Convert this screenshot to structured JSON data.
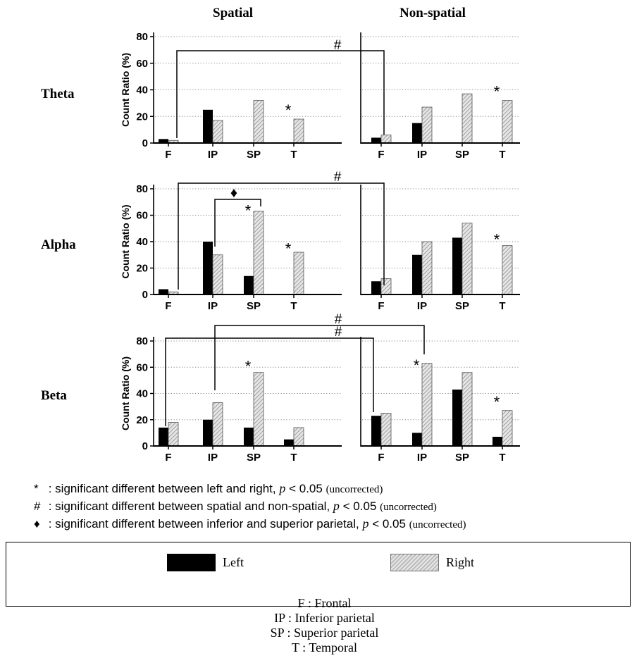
{
  "columns": {
    "spatial": "Spatial",
    "nonspatial": "Non-spatial"
  },
  "bands": [
    "Theta",
    "Alpha",
    "Beta"
  ],
  "significance_marks": {
    "lr": "*",
    "sns": "#",
    "ips": "♦"
  },
  "chart_data": [
    {
      "type": "bar",
      "band": "Theta",
      "condition": "Spatial",
      "categories": [
        "F",
        "IP",
        "SP",
        "T"
      ],
      "ylabel": "Count Ratio (%)",
      "ylim": [
        0,
        80
      ],
      "yticks": [
        0,
        20,
        40,
        60,
        80
      ],
      "grid": "dotted",
      "series": [
        {
          "name": "Left",
          "values": [
            3,
            25,
            0,
            0
          ]
        },
        {
          "name": "Right",
          "values": [
            2,
            17,
            32,
            18
          ]
        }
      ],
      "annotations": [
        {
          "mark": "*",
          "category": "T",
          "y": 27
        }
      ]
    },
    {
      "type": "bar",
      "band": "Theta",
      "condition": "Non-spatial",
      "categories": [
        "F",
        "IP",
        "SP",
        "T"
      ],
      "ylim": [
        0,
        80
      ],
      "yticks": [
        0,
        20,
        40,
        60,
        80
      ],
      "grid": "dotted",
      "series": [
        {
          "name": "Left",
          "values": [
            4,
            15,
            0,
            0
          ]
        },
        {
          "name": "Right",
          "values": [
            6,
            27,
            37,
            32
          ]
        }
      ],
      "annotations": [
        {
          "mark": "*",
          "category": "T",
          "y": 41
        }
      ]
    },
    {
      "type": "bar",
      "band": "Alpha",
      "condition": "Spatial",
      "categories": [
        "F",
        "IP",
        "SP",
        "T"
      ],
      "ylabel": "Count Ratio (%)",
      "ylim": [
        0,
        80
      ],
      "yticks": [
        0,
        20,
        40,
        60,
        80
      ],
      "grid": "dotted",
      "series": [
        {
          "name": "Left",
          "values": [
            4,
            40,
            14,
            0
          ]
        },
        {
          "name": "Right",
          "values": [
            2,
            30,
            63,
            32
          ]
        }
      ],
      "annotations": [
        {
          "mark": "*",
          "category": "SP",
          "y": 66
        },
        {
          "mark": "*",
          "category": "T",
          "y": 37
        }
      ]
    },
    {
      "type": "bar",
      "band": "Alpha",
      "condition": "Non-spatial",
      "categories": [
        "F",
        "IP",
        "SP",
        "T"
      ],
      "ylim": [
        0,
        80
      ],
      "yticks": [
        0,
        20,
        40,
        60,
        80
      ],
      "grid": "dotted",
      "series": [
        {
          "name": "Left",
          "values": [
            10,
            30,
            43,
            0
          ]
        },
        {
          "name": "Right",
          "values": [
            12,
            40,
            54,
            37
          ]
        }
      ],
      "annotations": [
        {
          "mark": "*",
          "category": "T",
          "y": 44
        }
      ]
    },
    {
      "type": "bar",
      "band": "Beta",
      "condition": "Spatial",
      "categories": [
        "F",
        "IP",
        "SP",
        "T"
      ],
      "ylabel": "Count Ratio (%)",
      "ylim": [
        0,
        80
      ],
      "yticks": [
        0,
        20,
        40,
        60,
        80
      ],
      "grid": "dotted",
      "series": [
        {
          "name": "Left",
          "values": [
            14,
            20,
            14,
            5
          ]
        },
        {
          "name": "Right",
          "values": [
            18,
            33,
            56,
            14
          ]
        }
      ],
      "annotations": [
        {
          "mark": "*",
          "category": "SP",
          "y": 63
        }
      ]
    },
    {
      "type": "bar",
      "band": "Beta",
      "condition": "Non-spatial",
      "categories": [
        "F",
        "IP",
        "SP",
        "T"
      ],
      "ylim": [
        0,
        80
      ],
      "yticks": [
        0,
        20,
        40,
        60,
        80
      ],
      "grid": "dotted",
      "series": [
        {
          "name": "Left",
          "values": [
            23,
            10,
            43,
            7
          ]
        },
        {
          "name": "Right",
          "values": [
            25,
            63,
            56,
            27
          ]
        }
      ],
      "annotations": [
        {
          "mark": "*",
          "category": "IP",
          "y": 64
        },
        {
          "mark": "*",
          "category": "T",
          "y": 36
        }
      ]
    }
  ],
  "notes": [
    {
      "symbol": "*",
      "text": ": significant different between left and right,",
      "p": "p",
      "threshold": "< 0.05",
      "qualifier": "(uncorrected)"
    },
    {
      "symbol": "#",
      "text": ": significant different between spatial and non-spatial,",
      "p": "p",
      "threshold": "< 0.05",
      "qualifier": "(uncorrected)"
    },
    {
      "symbol": "♦",
      "text": ": significant different between inferior and superior parietal,",
      "p": "p",
      "threshold": "< 0.05",
      "qualifier": "(uncorrected)"
    }
  ],
  "legend": {
    "left_label": "Left",
    "right_label": "Right",
    "left_color": "#000000",
    "right_color": "#c8c8c8",
    "abbreviations": [
      "F : Frontal",
      "IP : Inferior parietal",
      "SP : Superior parietal",
      "T : Temporal"
    ]
  }
}
